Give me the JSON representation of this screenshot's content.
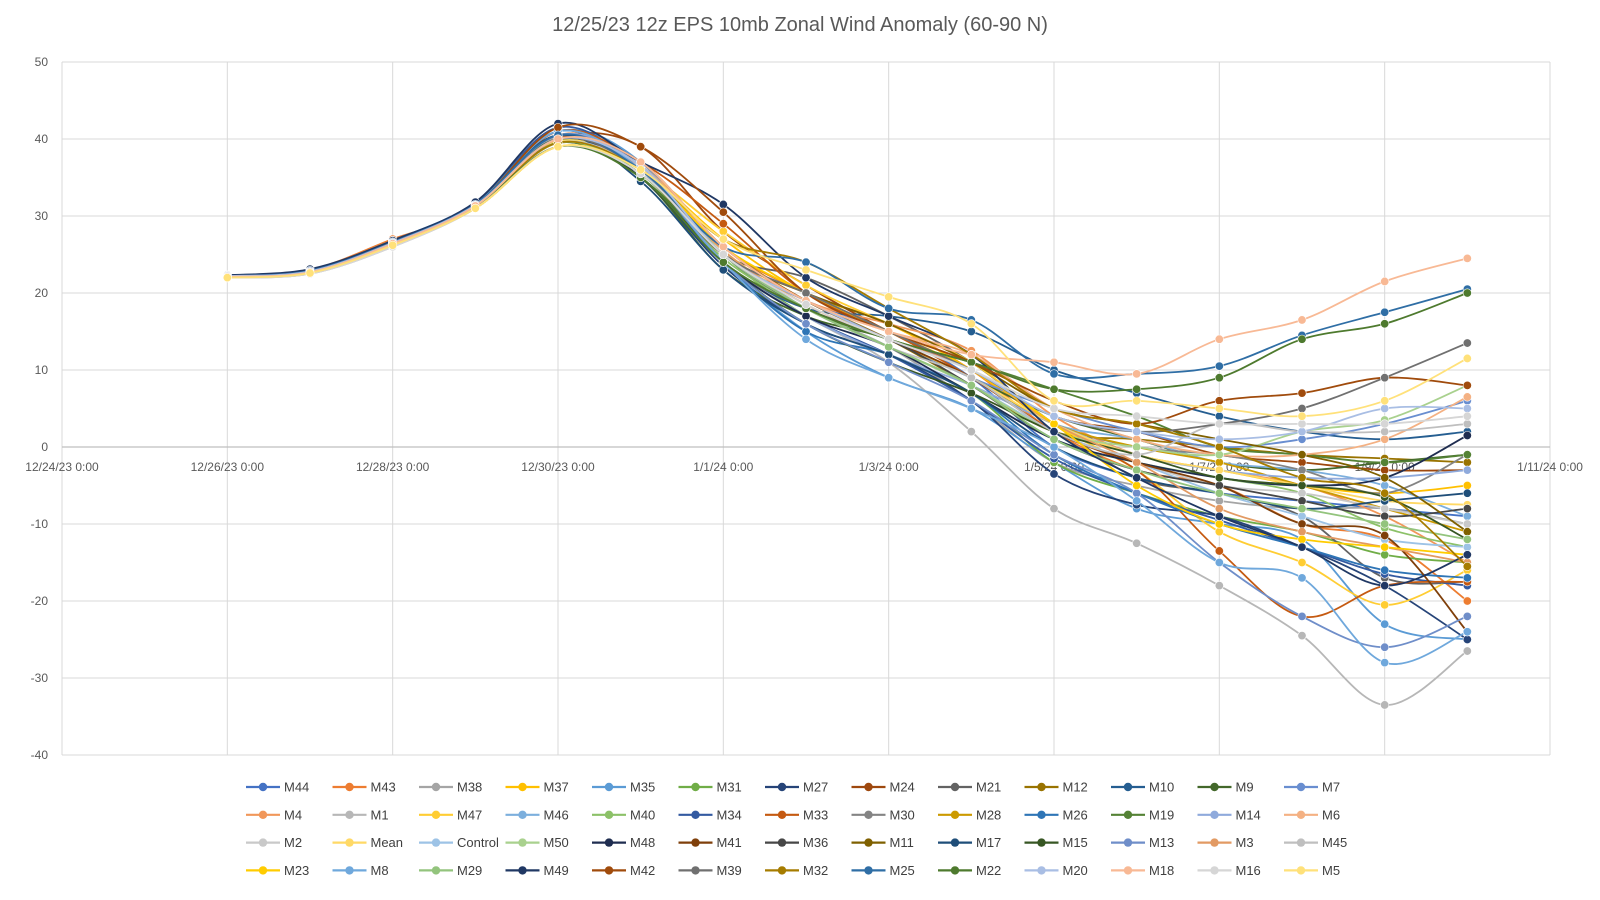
{
  "chart_data": {
    "type": "line",
    "title": "12/25/23 12z EPS 10mb Zonal Wind Anomaly (60-90 N)",
    "xlabel": "",
    "ylabel": "",
    "ylim": [
      -40,
      50
    ],
    "xlim": [
      "12/24/23 0:00",
      "1/11/24 0:00"
    ],
    "grid": true,
    "legend_position": "bottom",
    "y_ticks": [
      "50",
      "40",
      "30",
      "20",
      "10",
      "0",
      "-10",
      "-20",
      "-30",
      "-40"
    ],
    "x_ticks": [
      "12/24/23 0:00",
      "12/26/23 0:00",
      "12/28/23 0:00",
      "12/30/23 0:00",
      "1/1/24 0:00",
      "1/3/24 0:00",
      "1/5/24 0:00",
      "1/7/24 0:00",
      "1/9/24 0:00",
      "1/11/24 0:00"
    ],
    "x": [
      "12/26/23 0:00",
      "12/27/23 0:00",
      "12/28/23 0:00",
      "12/29/23 0:00",
      "12/30/23 0:00",
      "12/31/23 0:00",
      "1/1/24 0:00",
      "1/2/24 0:00",
      "1/3/24 0:00",
      "1/4/24 0:00",
      "1/5/24 0:00",
      "1/6/24 0:00",
      "1/7/24 0:00",
      "1/8/24 0:00",
      "1/9/24 0:00",
      "1/10/24 0:00"
    ],
    "series": [
      {
        "name": "M44",
        "color": "#4472C4",
        "values": [
          22.2,
          22.8,
          26.5,
          31.5,
          40.0,
          36.0,
          25.0,
          19.0,
          15.0,
          9.0,
          0.0,
          -4.0,
          -6.0,
          -7.0,
          -8.0,
          -9.0
        ]
      },
      {
        "name": "M43",
        "color": "#ED7D31",
        "values": [
          22.3,
          23.0,
          27.0,
          31.0,
          40.5,
          37.0,
          26.0,
          20.0,
          16.0,
          10.0,
          2.0,
          -3.0,
          -5.0,
          -10.0,
          -12.0,
          -20.0
        ]
      },
      {
        "name": "M38",
        "color": "#A5A5A5",
        "values": [
          22.1,
          22.7,
          26.4,
          31.3,
          40.2,
          36.5,
          25.5,
          18.0,
          13.0,
          6.0,
          -2.0,
          -5.0,
          -7.0,
          -8.0,
          -8.0,
          -10.0
        ]
      },
      {
        "name": "M37",
        "color": "#FFC000",
        "values": [
          22.0,
          22.6,
          26.3,
          31.0,
          39.5,
          36.0,
          27.0,
          20.0,
          16.0,
          10.0,
          3.0,
          -1.0,
          -3.0,
          -5.0,
          -6.0,
          -5.0
        ]
      },
      {
        "name": "M35",
        "color": "#5B9BD5",
        "values": [
          22.2,
          22.9,
          26.6,
          31.5,
          41.0,
          37.0,
          24.0,
          15.0,
          9.0,
          5.0,
          -2.0,
          -8.0,
          -10.0,
          -12.0,
          -23.0,
          -25.0
        ]
      },
      {
        "name": "M31",
        "color": "#70AD47",
        "values": [
          22.2,
          22.8,
          26.5,
          31.4,
          40.0,
          36.5,
          25.0,
          17.0,
          12.0,
          7.0,
          -2.0,
          -6.0,
          -9.0,
          -11.0,
          -14.0,
          -15.0
        ]
      },
      {
        "name": "M27",
        "color": "#264478",
        "values": [
          22.3,
          23.0,
          26.8,
          31.6,
          40.5,
          35.0,
          23.5,
          16.0,
          12.0,
          6.0,
          -3.5,
          -7.5,
          -9.0,
          -13.0,
          -18.0,
          -25.0
        ]
      },
      {
        "name": "M24",
        "color": "#9E480E",
        "values": [
          22.1,
          22.7,
          26.4,
          31.2,
          40.0,
          39.0,
          28.0,
          21.0,
          15.0,
          10.0,
          4.0,
          2.0,
          -1.0,
          -2.0,
          -3.0,
          -3.0
        ]
      },
      {
        "name": "M21",
        "color": "#636363",
        "values": [
          22.2,
          22.8,
          26.5,
          31.4,
          40.0,
          36.0,
          25.0,
          22.0,
          17.0,
          11.0,
          3.0,
          -4.0,
          -6.0,
          -9.0,
          -17.0,
          -17.5
        ]
      },
      {
        "name": "M12",
        "color": "#997300",
        "values": [
          22.0,
          22.6,
          26.2,
          31.0,
          39.0,
          35.5,
          25.0,
          19.0,
          14.0,
          8.0,
          2.0,
          1.0,
          0.0,
          -1.0,
          -1.5,
          -2.0
        ]
      },
      {
        "name": "M10",
        "color": "#255E91",
        "values": [
          22.2,
          22.9,
          26.6,
          31.5,
          40.0,
          35.0,
          24.0,
          18.0,
          17.0,
          15.0,
          10.0,
          7.0,
          4.0,
          2.0,
          1.0,
          2.0
        ]
      },
      {
        "name": "M9",
        "color": "#43682B",
        "values": [
          22.1,
          22.7,
          26.4,
          31.2,
          39.5,
          35.0,
          23.0,
          17.0,
          14.0,
          9.0,
          4.0,
          1.0,
          -2.0,
          -3.0,
          -2.0,
          -1.0
        ]
      },
      {
        "name": "M7",
        "color": "#698ED0",
        "values": [
          22.2,
          22.8,
          26.5,
          31.4,
          40.5,
          36.0,
          25.0,
          19.0,
          14.0,
          9.0,
          5.0,
          2.0,
          0.0,
          1.0,
          3.0,
          6.0
        ]
      },
      {
        "name": "M4",
        "color": "#F1975A",
        "values": [
          22.1,
          22.7,
          26.4,
          31.3,
          40.0,
          37.0,
          26.0,
          19.0,
          16.0,
          12.5,
          4.0,
          -1.0,
          -3.0,
          -5.0,
          -9.0,
          -15.0
        ]
      },
      {
        "name": "M1",
        "color": "#B7B7B7",
        "values": [
          22.0,
          22.5,
          26.0,
          31.0,
          39.0,
          35.5,
          24.0,
          17.0,
          11.0,
          2.0,
          -8.0,
          -12.5,
          -18.0,
          -24.5,
          -33.5,
          -26.5
        ]
      },
      {
        "name": "M47",
        "color": "#FFCD33",
        "values": [
          22.1,
          22.7,
          26.5,
          31.2,
          39.5,
          36.0,
          28.0,
          21.0,
          16.0,
          11.0,
          3.0,
          -3.0,
          -11.0,
          -15.0,
          -20.5,
          -16.0
        ]
      },
      {
        "name": "M46",
        "color": "#7CAFDD",
        "values": [
          22.2,
          22.8,
          26.6,
          31.4,
          40.5,
          36.5,
          25.0,
          18.0,
          14.0,
          9.0,
          3.0,
          1.0,
          -2.0,
          -3.0,
          -5.0,
          -9.0
        ]
      },
      {
        "name": "M40",
        "color": "#8CC168",
        "values": [
          22.1,
          22.7,
          26.4,
          31.3,
          39.5,
          35.5,
          24.5,
          18.0,
          13.0,
          8.0,
          1.0,
          -2.0,
          -4.0,
          -6.0,
          -10.5,
          -13.0
        ]
      },
      {
        "name": "M34",
        "color": "#335AA1",
        "values": [
          22.2,
          22.9,
          26.6,
          31.6,
          41.5,
          36.0,
          24.0,
          17.0,
          12.0,
          6.0,
          -1.5,
          -6.0,
          -9.5,
          -13.0,
          -16.5,
          -18.0
        ]
      },
      {
        "name": "M33",
        "color": "#C55A11",
        "values": [
          22.1,
          22.8,
          26.6,
          31.4,
          41.0,
          37.0,
          29.0,
          20.0,
          15.0,
          9.0,
          2.0,
          -3.0,
          -13.5,
          -22.0,
          -18.0,
          -17.5
        ]
      },
      {
        "name": "M30",
        "color": "#848484",
        "values": [
          22.2,
          22.8,
          26.5,
          31.5,
          40.0,
          36.0,
          24.0,
          18.0,
          14.0,
          9.0,
          3.0,
          0.0,
          -1.0,
          -3.0,
          -6.0,
          -1.0
        ]
      },
      {
        "name": "M28",
        "color": "#CC9A00",
        "values": [
          22.1,
          22.7,
          26.4,
          31.2,
          39.5,
          36.0,
          26.0,
          19.0,
          14.0,
          9.0,
          3.0,
          0.0,
          -2.0,
          -5.0,
          -8.0,
          -11.0
        ]
      },
      {
        "name": "M26",
        "color": "#2E75B6",
        "values": [
          22.3,
          23.0,
          26.8,
          31.7,
          41.0,
          36.0,
          24.0,
          15.0,
          12.0,
          7.0,
          -1.0,
          -6.0,
          -10.0,
          -13.0,
          -16.0,
          -17.0
        ]
      },
      {
        "name": "M19",
        "color": "#548235",
        "values": [
          22.2,
          22.8,
          26.6,
          31.5,
          40.0,
          35.0,
          25.0,
          18.0,
          14.0,
          11.0,
          7.5,
          4.0,
          0.0,
          -1.0,
          -2.0,
          -1.0
        ]
      },
      {
        "name": "M14",
        "color": "#8FAADC",
        "values": [
          22.2,
          22.8,
          26.5,
          31.4,
          40.5,
          36.5,
          24.0,
          17.0,
          12.0,
          8.0,
          3.0,
          -1.0,
          -3.0,
          -4.0,
          -4.0,
          -3.0
        ]
      },
      {
        "name": "M6",
        "color": "#F4B183",
        "values": [
          22.1,
          22.7,
          26.5,
          31.4,
          40.0,
          36.5,
          26.0,
          19.0,
          15.0,
          12.0,
          5.0,
          1.0,
          -1.0,
          -1.0,
          1.0,
          6.5
        ]
      },
      {
        "name": "M2",
        "color": "#C9C9C9",
        "values": [
          22.0,
          22.5,
          26.1,
          31.0,
          39.5,
          36.0,
          25.0,
          18.0,
          13.0,
          8.0,
          2.0,
          -2.0,
          -5.0,
          -6.0,
          -8.0,
          -10.0
        ]
      },
      {
        "name": "Mean",
        "color": "#FFD966",
        "values": [
          22.1,
          22.7,
          26.4,
          31.2,
          39.7,
          36.0,
          25.5,
          18.5,
          14.0,
          9.0,
          3.0,
          -1.0,
          -3.0,
          -5.0,
          -7.0,
          -7.5
        ]
      },
      {
        "name": "Control",
        "color": "#9DC3E6",
        "values": [
          22.1,
          22.7,
          26.5,
          31.3,
          40.0,
          36.5,
          25.0,
          18.0,
          13.0,
          8.0,
          2.0,
          -2.0,
          -6.0,
          -9.0,
          -12.0,
          -13.0
        ]
      },
      {
        "name": "M50",
        "color": "#A9D18E",
        "values": [
          22.1,
          22.7,
          26.4,
          31.3,
          39.5,
          36.0,
          25.0,
          18.0,
          13.0,
          8.0,
          2.0,
          0.0,
          -1.0,
          2.0,
          3.5,
          8.0
        ]
      },
      {
        "name": "M48",
        "color": "#1F2D50",
        "values": [
          22.2,
          22.8,
          26.6,
          31.5,
          40.5,
          35.0,
          24.0,
          17.0,
          13.0,
          7.0,
          1.0,
          -2.0,
          -4.0,
          -5.0,
          -4.0,
          1.5
        ]
      },
      {
        "name": "M41",
        "color": "#7F3F0A",
        "values": [
          22.1,
          22.7,
          26.5,
          31.3,
          40.0,
          37.0,
          26.0,
          19.0,
          14.0,
          9.0,
          2.0,
          -2.0,
          -5.0,
          -10.0,
          -11.5,
          -24.0
        ]
      },
      {
        "name": "M36",
        "color": "#474747",
        "values": [
          22.2,
          22.8,
          26.6,
          31.5,
          40.0,
          36.0,
          25.0,
          18.0,
          14.0,
          8.0,
          1.0,
          -3.0,
          -5.0,
          -7.0,
          -9.0,
          -8.0
        ]
      },
      {
        "name": "M11",
        "color": "#7F6000",
        "values": [
          22.1,
          22.7,
          26.4,
          31.2,
          39.5,
          35.5,
          25.0,
          20.0,
          16.0,
          11.0,
          5.0,
          3.0,
          1.0,
          -1.0,
          -4.0,
          -11.0
        ]
      },
      {
        "name": "M17",
        "color": "#1F4E79",
        "values": [
          22.2,
          22.9,
          26.7,
          31.6,
          40.5,
          34.5,
          23.0,
          16.0,
          12.0,
          7.0,
          0.0,
          -4.0,
          -6.0,
          -8.0,
          -7.0,
          -6.0
        ]
      },
      {
        "name": "M15",
        "color": "#375623",
        "values": [
          22.1,
          22.7,
          26.5,
          31.3,
          39.5,
          35.0,
          24.0,
          16.0,
          11.0,
          7.0,
          2.0,
          -1.0,
          -4.0,
          -5.0,
          -6.5,
          -12.0
        ]
      },
      {
        "name": "M13",
        "color": "#6F8EC9",
        "values": [
          22.2,
          22.8,
          26.5,
          31.4,
          40.5,
          36.0,
          24.0,
          16.0,
          11.0,
          6.0,
          -1.0,
          -6.0,
          -15.0,
          -22.0,
          -26.0,
          -22.0
        ]
      },
      {
        "name": "M3",
        "color": "#E29A63",
        "values": [
          22.1,
          22.7,
          26.4,
          31.3,
          40.0,
          36.5,
          25.5,
          18.5,
          14.0,
          10.0,
          3.0,
          -2.0,
          -8.0,
          -11.0,
          -13.0,
          -15.0
        ]
      },
      {
        "name": "M45",
        "color": "#BFBFBF",
        "values": [
          22.0,
          22.6,
          26.2,
          31.1,
          39.5,
          36.0,
          25.0,
          18.0,
          13.0,
          9.0,
          2.0,
          -1.0,
          3.0,
          2.0,
          2.0,
          3.0
        ]
      },
      {
        "name": "M23",
        "color": "#FFCC00",
        "values": [
          22.0,
          22.6,
          26.3,
          31.0,
          39.0,
          36.0,
          26.0,
          20.0,
          15.0,
          10.0,
          3.0,
          -5.0,
          -10.0,
          -12.0,
          -13.0,
          -14.0
        ]
      },
      {
        "name": "M8",
        "color": "#6FA8DC",
        "values": [
          22.2,
          22.8,
          26.6,
          31.5,
          41.0,
          36.0,
          24.0,
          14.0,
          9.0,
          5.0,
          0.0,
          -7.0,
          -15.0,
          -17.0,
          -28.0,
          -24.0
        ]
      },
      {
        "name": "M29",
        "color": "#93C47D",
        "values": [
          22.1,
          22.7,
          26.4,
          31.2,
          39.5,
          35.5,
          25.0,
          18.0,
          13.0,
          8.0,
          1.0,
          -3.0,
          -6.0,
          -8.0,
          -10.0,
          -12.0
        ]
      },
      {
        "name": "M49",
        "color": "#203864",
        "values": [
          22.3,
          23.1,
          26.8,
          31.8,
          42.0,
          37.0,
          31.5,
          22.0,
          17.0,
          12.0,
          2.0,
          -4.0,
          -9.0,
          -13.0,
          -18.0,
          -14.0
        ]
      },
      {
        "name": "M42",
        "color": "#A04B0C",
        "values": [
          22.1,
          22.8,
          26.6,
          31.4,
          41.5,
          39.0,
          30.5,
          20.0,
          15.0,
          11.0,
          6.0,
          3.0,
          6.0,
          7.0,
          9.0,
          8.0
        ]
      },
      {
        "name": "M39",
        "color": "#707070",
        "values": [
          22.2,
          22.8,
          26.5,
          31.4,
          40.0,
          36.0,
          25.0,
          20.0,
          15.0,
          10.0,
          4.0,
          2.0,
          3.0,
          5.0,
          9.0,
          13.5
        ]
      },
      {
        "name": "M32",
        "color": "#A67C00",
        "values": [
          22.1,
          22.7,
          26.4,
          31.3,
          39.5,
          36.0,
          27.0,
          24.0,
          18.0,
          12.0,
          5.0,
          3.0,
          0.0,
          -4.0,
          -6.0,
          -15.5
        ]
      },
      {
        "name": "M25",
        "color": "#2F6EA5",
        "values": [
          22.2,
          22.9,
          26.6,
          31.5,
          40.5,
          36.0,
          26.0,
          24.0,
          18.0,
          16.5,
          9.5,
          9.5,
          10.5,
          14.5,
          17.5,
          20.5
        ]
      },
      {
        "name": "M22",
        "color": "#4E7A2E",
        "values": [
          22.1,
          22.7,
          26.4,
          31.2,
          39.0,
          35.0,
          24.0,
          18.0,
          14.0,
          11.0,
          7.5,
          7.5,
          9.0,
          14.0,
          16.0,
          20.0
        ]
      },
      {
        "name": "M20",
        "color": "#A9BEE4",
        "values": [
          22.2,
          22.8,
          26.5,
          31.4,
          40.0,
          36.5,
          25.0,
          19.0,
          14.0,
          10.0,
          4.0,
          2.0,
          1.0,
          2.0,
          5.0,
          5.0
        ]
      },
      {
        "name": "M18",
        "color": "#F8B995",
        "values": [
          22.1,
          22.7,
          26.4,
          31.3,
          40.0,
          37.0,
          26.0,
          19.0,
          15.0,
          12.0,
          11.0,
          9.5,
          14.0,
          16.5,
          21.5,
          24.5
        ]
      },
      {
        "name": "M16",
        "color": "#D6D6D6",
        "values": [
          22.0,
          22.5,
          26.0,
          31.0,
          39.0,
          35.5,
          25.0,
          18.5,
          14.0,
          10.0,
          5.0,
          4.0,
          3.0,
          3.0,
          3.0,
          4.0
        ]
      },
      {
        "name": "M5",
        "color": "#FFE17A",
        "values": [
          22.0,
          22.6,
          26.2,
          31.0,
          39.0,
          36.0,
          27.0,
          23.0,
          19.5,
          16.0,
          6.0,
          6.0,
          5.0,
          4.0,
          6.0,
          11.5
        ]
      }
    ]
  }
}
